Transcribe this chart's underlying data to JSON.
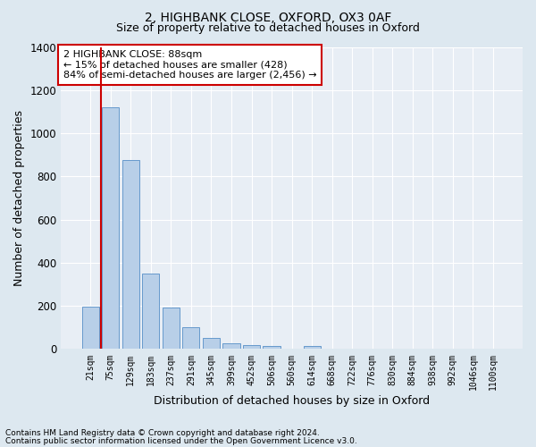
{
  "title": "2, HIGHBANK CLOSE, OXFORD, OX3 0AF",
  "subtitle": "Size of property relative to detached houses in Oxford",
  "xlabel": "Distribution of detached houses by size in Oxford",
  "ylabel": "Number of detached properties",
  "footnote1": "Contains HM Land Registry data © Crown copyright and database right 2024.",
  "footnote2": "Contains public sector information licensed under the Open Government Licence v3.0.",
  "bar_labels": [
    "21sqm",
    "75sqm",
    "129sqm",
    "183sqm",
    "237sqm",
    "291sqm",
    "345sqm",
    "399sqm",
    "452sqm",
    "506sqm",
    "560sqm",
    "614sqm",
    "668sqm",
    "722sqm",
    "776sqm",
    "830sqm",
    "884sqm",
    "938sqm",
    "992sqm",
    "1046sqm",
    "1100sqm"
  ],
  "bar_values": [
    197,
    1120,
    875,
    350,
    193,
    100,
    52,
    25,
    18,
    15,
    0,
    15,
    0,
    0,
    0,
    0,
    0,
    0,
    0,
    0,
    0
  ],
  "bar_color": "#b8cfe8",
  "bar_edge_color": "#6699cc",
  "highlight_bar_index": 1,
  "highlight_line_color": "#cc0000",
  "ylim": [
    0,
    1400
  ],
  "yticks": [
    0,
    200,
    400,
    600,
    800,
    1000,
    1200,
    1400
  ],
  "annotation_title": "2 HIGHBANK CLOSE: 88sqm",
  "annotation_line1": "← 15% of detached houses are smaller (428)",
  "annotation_line2": "84% of semi-detached houses are larger (2,456) →",
  "annotation_box_facecolor": "#ffffff",
  "annotation_box_edgecolor": "#cc0000",
  "bg_color": "#dde8f0",
  "plot_bg_color": "#e8eef5",
  "grid_color": "#ffffff",
  "title_fontsize": 10,
  "subtitle_fontsize": 9,
  "ylabel_fontsize": 9,
  "xlabel_fontsize": 9,
  "footnote_fontsize": 6.5,
  "annot_fontsize": 8
}
